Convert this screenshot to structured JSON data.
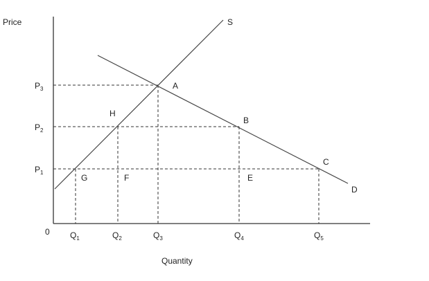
{
  "axes": {
    "y_label": "Price",
    "x_label": "Quantity",
    "origin": "0"
  },
  "price_levels": [
    {
      "base": "P",
      "sub": "3"
    },
    {
      "base": "P",
      "sub": "2"
    },
    {
      "base": "P",
      "sub": "1"
    }
  ],
  "quantity_levels": [
    {
      "base": "Q",
      "sub": "1"
    },
    {
      "base": "Q",
      "sub": "2"
    },
    {
      "base": "Q",
      "sub": "3"
    },
    {
      "base": "Q",
      "sub": "4"
    },
    {
      "base": "Q",
      "sub": "5"
    }
  ],
  "curves": {
    "supply": "S",
    "demand": "D"
  },
  "points": {
    "A": "A",
    "B": "B",
    "C": "C",
    "E": "E",
    "F": "F",
    "G": "G",
    "H": "H"
  }
}
